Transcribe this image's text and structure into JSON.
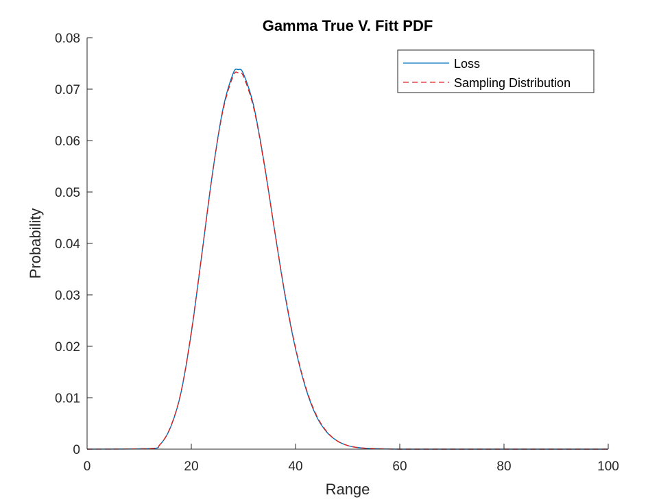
{
  "chart_data": {
    "type": "line",
    "title": "Gamma True V. Fitt PDF",
    "xlabel": "Range",
    "ylabel": "Probability",
    "xlim": [
      0,
      100
    ],
    "ylim": [
      0,
      0.08
    ],
    "x_ticks": [
      0,
      20,
      40,
      60,
      80,
      100
    ],
    "x_tick_labels": [
      "0",
      "20",
      "40",
      "60",
      "80",
      "100"
    ],
    "y_ticks": [
      0,
      0.01,
      0.02,
      0.03,
      0.04,
      0.05,
      0.06,
      0.07,
      0.08
    ],
    "y_tick_labels": [
      "0",
      "0.01",
      "0.02",
      "0.03",
      "0.04",
      "0.05",
      "0.06",
      "0.07",
      "0.08"
    ],
    "grid": false,
    "legend_position": "top-right",
    "x": [
      0,
      12,
      14,
      16,
      18,
      20,
      22,
      24,
      26,
      28,
      29,
      30,
      32,
      34,
      36,
      38,
      40,
      42,
      44,
      46,
      48,
      50,
      52,
      55,
      60,
      70,
      80,
      100
    ],
    "series": [
      {
        "name": "Loss",
        "color": "#0072BD",
        "style": "solid",
        "values": [
          0,
          0.0001,
          0.0009,
          0.0042,
          0.0109,
          0.0226,
          0.0377,
          0.0532,
          0.0658,
          0.073,
          0.0738,
          0.073,
          0.0666,
          0.0555,
          0.0424,
          0.0298,
          0.0195,
          0.0117,
          0.0064,
          0.0033,
          0.0016,
          0.0007,
          0.0003,
          0.0001,
          0,
          0,
          0,
          0
        ]
      },
      {
        "name": "Sampling Distribution",
        "color": "#D95319",
        "stroke": "#E0201B",
        "style": "dashed",
        "values": [
          0,
          0.0001,
          0.0009,
          0.0043,
          0.011,
          0.0228,
          0.0378,
          0.0531,
          0.0655,
          0.0725,
          0.0732,
          0.0725,
          0.0662,
          0.0553,
          0.0424,
          0.03,
          0.0197,
          0.0119,
          0.0066,
          0.0034,
          0.0016,
          0.0007,
          0.0003,
          0.0001,
          0,
          0,
          0,
          0
        ]
      }
    ]
  }
}
